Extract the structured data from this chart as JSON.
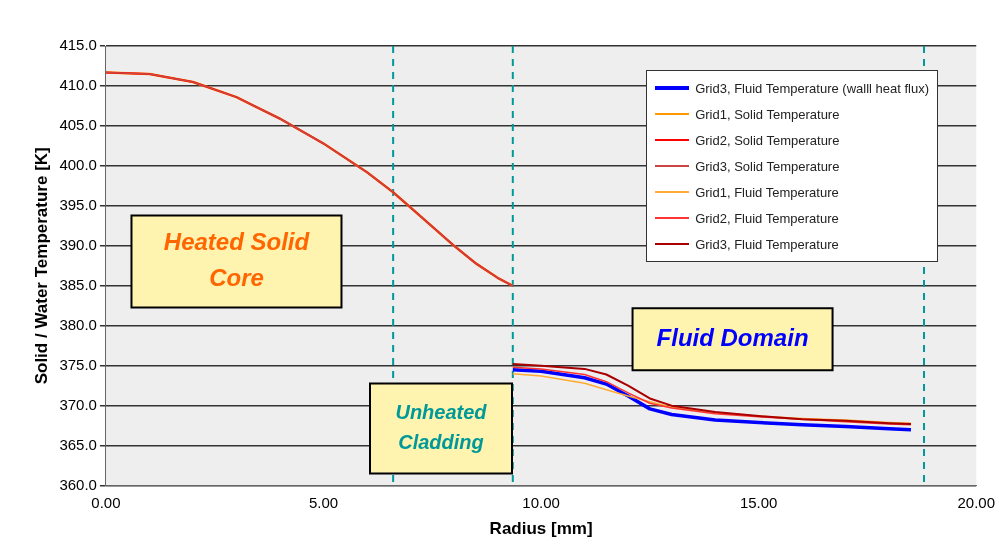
{
  "chart_data": {
    "type": "line",
    "xlabel": "Radius [mm]",
    "ylabel": "Solid / Water Temperature [K]",
    "xlim": [
      0,
      20
    ],
    "xticks": [
      {
        "value": 0,
        "label": "0.00"
      },
      {
        "value": 5,
        "label": "5.00"
      },
      {
        "value": 10,
        "label": "10.00"
      },
      {
        "value": 15,
        "label": "15.00"
      },
      {
        "value": 20,
        "label": "20.00"
      }
    ],
    "ylim": [
      360,
      415
    ],
    "yticks": [
      {
        "value": 360,
        "label": "360.0"
      },
      {
        "value": 365,
        "label": "365.0"
      },
      {
        "value": 370,
        "label": "370.0"
      },
      {
        "value": 375,
        "label": "375.0"
      },
      {
        "value": 380,
        "label": "380.0"
      },
      {
        "value": 385,
        "label": "385.0"
      },
      {
        "value": 390,
        "label": "390.0"
      },
      {
        "value": 395,
        "label": "395.0"
      },
      {
        "value": 400,
        "label": "400.0"
      },
      {
        "value": 405,
        "label": "405.0"
      },
      {
        "value": 410,
        "label": "410.0"
      },
      {
        "value": 415,
        "label": "415.0"
      }
    ],
    "grid": "y",
    "legend": "top right",
    "marker": "none",
    "line_style": "solid",
    "series": [
      {
        "name": "Grid3, Fluid Temperature (walll heat flux)",
        "color": "#0000ff",
        "x": [
          9.35,
          10,
          11,
          11.5,
          12,
          12.5,
          13,
          14,
          15,
          16,
          17,
          18,
          18.5
        ],
        "values": [
          374.5,
          374.3,
          373.5,
          372.7,
          371.2,
          369.6,
          368.9,
          368.2,
          367.9,
          367.6,
          367.4,
          367.1,
          367.0
        ]
      },
      {
        "name": "Grid1, Solid Temperature",
        "color": "#ff9900",
        "x": [
          0,
          1,
          2,
          3,
          4,
          5,
          6,
          6.6,
          7,
          8,
          8.5,
          9,
          9.35
        ],
        "values": [
          411.7,
          411.5,
          410.5,
          408.6,
          405.9,
          402.8,
          399.2,
          396.7,
          394.8,
          390.0,
          387.8,
          386.0,
          385.0
        ]
      },
      {
        "name": "Grid2, Solid Temperature",
        "color": "#ff0000",
        "x": [
          0,
          1,
          2,
          3,
          4,
          5,
          6,
          6.6,
          7,
          8,
          8.5,
          9,
          9.35
        ],
        "values": [
          411.7,
          411.5,
          410.5,
          408.6,
          405.9,
          402.8,
          399.2,
          396.7,
          394.8,
          390.0,
          387.8,
          386.0,
          385.0
        ]
      },
      {
        "name": "Grid3, Solid Temperature",
        "color": "#cc4444",
        "x": [
          0,
          1,
          2,
          3,
          4,
          5,
          6,
          6.6,
          7,
          8,
          8.5,
          9,
          9.35
        ],
        "values": [
          411.7,
          411.5,
          410.5,
          408.6,
          405.9,
          402.8,
          399.2,
          396.7,
          394.8,
          390.0,
          387.8,
          386.0,
          385.0
        ]
      },
      {
        "name": "Grid1, Fluid Temperature",
        "color": "#ffaa33",
        "x": [
          9.35,
          10,
          11,
          11.5,
          12,
          12.5,
          13,
          14,
          15,
          16,
          17,
          18,
          18.5
        ],
        "values": [
          374.0,
          373.7,
          372.8,
          372.0,
          371.2,
          370.5,
          369.8,
          369.1,
          368.7,
          368.4,
          368.2,
          367.9,
          367.8
        ]
      },
      {
        "name": "Grid2, Fluid Temperature",
        "color": "#ff3333",
        "x": [
          9.35,
          10,
          11,
          11.5,
          12,
          12.5,
          13,
          14,
          15,
          16,
          17,
          18,
          18.5
        ],
        "values": [
          374.8,
          374.6,
          373.9,
          373.0,
          371.6,
          370.3,
          369.7,
          369.0,
          368.6,
          368.3,
          368.0,
          367.7,
          367.6
        ]
      },
      {
        "name": "Grid3, Fluid Temperature",
        "color": "#aa0000",
        "x": [
          9.35,
          10,
          11,
          11.5,
          12,
          12.5,
          13,
          14,
          15,
          16,
          17,
          18,
          18.5
        ],
        "values": [
          375.2,
          375.0,
          374.6,
          373.9,
          372.5,
          370.9,
          370.0,
          369.2,
          368.7,
          368.3,
          368.1,
          367.8,
          367.7
        ]
      }
    ],
    "ref_lines": [
      {
        "axis": "x",
        "value": 6.6,
        "color": "#009999",
        "line_style": "dashed"
      },
      {
        "axis": "x",
        "value": 9.35,
        "color": "#009999",
        "line_style": "dashed"
      },
      {
        "axis": "x",
        "value": 18.8,
        "color": "#009999",
        "line_style": "dashed"
      }
    ],
    "annotations": [
      "Heated Solid Core",
      "Unheated Cladding",
      "Fluid Domain"
    ]
  }
}
